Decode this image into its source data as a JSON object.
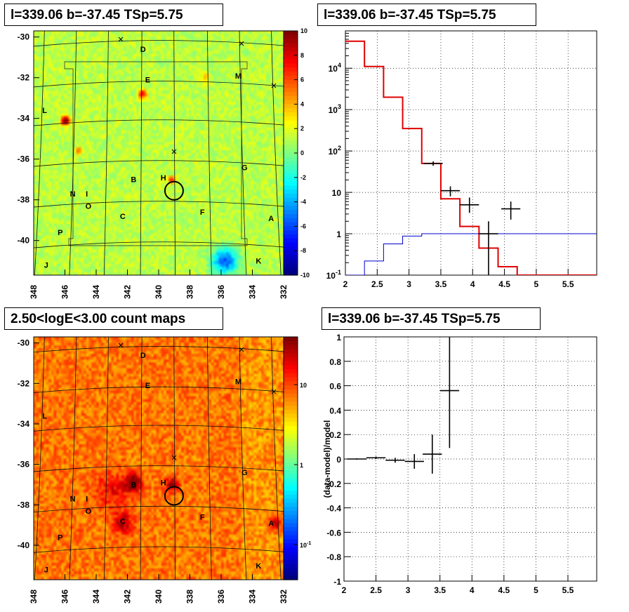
{
  "panels": {
    "tl_title": "l=339.06 b=-37.45 TSp=5.75",
    "tr_title": "l=339.06 b=-37.45 TSp=5.75",
    "bl_title": "2.50<logE<3.00 count maps",
    "br_title": "l=339.06 b=-37.45 TSp=5.75"
  },
  "chart_data": [
    {
      "type": "heatmap",
      "id": "ts-map",
      "title": "l=339.06 b=-37.45 TSp=5.75",
      "xlim": [
        348,
        332
      ],
      "ylim": [
        -41.7,
        -29.7
      ],
      "xticks": [
        "348",
        "346",
        "344",
        "342",
        "340",
        "338",
        "336",
        "334",
        "332"
      ],
      "yticks": [
        "-30",
        "-32",
        "-34",
        "-36",
        "-38",
        "-40"
      ],
      "colorbar": {
        "range": [
          -10,
          10
        ],
        "ticks": [
          "10",
          "8",
          "6",
          "4",
          "2",
          "0",
          "-2",
          "-4",
          "-6",
          "-8",
          "-10"
        ]
      },
      "sources": [
        {
          "label": "D",
          "l": 341.0,
          "b": -30.6
        },
        {
          "label": "E",
          "l": 340.7,
          "b": -32.1
        },
        {
          "label": "M",
          "l": 334.9,
          "b": -31.9
        },
        {
          "label": "L",
          "l": 347.3,
          "b": -33.6
        },
        {
          "label": "G",
          "l": 334.5,
          "b": -36.4
        },
        {
          "label": "B",
          "l": 341.6,
          "b": -37.0
        },
        {
          "label": "H",
          "l": 339.7,
          "b": -36.9
        },
        {
          "label": "N",
          "l": 345.5,
          "b": -37.7
        },
        {
          "label": "I",
          "l": 344.6,
          "b": -37.7
        },
        {
          "label": "O",
          "l": 344.5,
          "b": -38.3
        },
        {
          "label": "C",
          "l": 342.3,
          "b": -38.8
        },
        {
          "label": "F",
          "l": 337.2,
          "b": -38.6
        },
        {
          "label": "A",
          "l": 332.8,
          "b": -38.9
        },
        {
          "label": "P",
          "l": 346.3,
          "b": -39.6
        },
        {
          "label": "J",
          "l": 347.2,
          "b": -41.2
        },
        {
          "label": "K",
          "l": 333.6,
          "b": -41.0
        }
      ],
      "target": {
        "l": 339.06,
        "b": -37.45
      }
    },
    {
      "type": "line",
      "id": "spectrum",
      "title": "l=339.06 b=-37.45 TSp=5.75",
      "xlim": [
        2,
        5.95
      ],
      "ylim": [
        0.1,
        80000
      ],
      "yscale": "log",
      "xticks": [
        "2",
        "2.5",
        "3",
        "3.5",
        "4",
        "4.5",
        "5",
        "5.5"
      ],
      "yticks": [
        "10^{-1}",
        "1",
        "10",
        "10^{2}",
        "10^{3}",
        "10^{4}"
      ],
      "bin_edges": [
        2.0,
        2.3,
        2.6,
        2.9,
        3.2,
        3.5,
        3.8,
        4.1,
        4.4,
        4.7,
        5.0,
        5.3,
        5.6,
        5.95
      ],
      "series": [
        {
          "color": "#e00000",
          "values": [
            45000,
            11000,
            2000,
            350,
            50,
            7,
            1.5,
            0.45,
            0.16,
            0.1,
            0.1,
            0.1,
            0.1
          ]
        },
        {
          "color": "#0000cc",
          "values": [
            0.08,
            0.22,
            0.57,
            0.88,
            1.0,
            1.0,
            1.0,
            1.0,
            1.0,
            1.0,
            1.0,
            1.0,
            1.0
          ]
        }
      ],
      "data_points": [
        {
          "x": 3.38,
          "y": 50,
          "xerr": 0.15,
          "ylo": 44,
          "yhi": 56
        },
        {
          "x": 3.65,
          "y": 11,
          "xerr": 0.15,
          "ylo": 8,
          "yhi": 14
        },
        {
          "x": 3.95,
          "y": 5,
          "xerr": 0.15,
          "ylo": 3.2,
          "yhi": 7.5
        },
        {
          "x": 4.25,
          "y": 1,
          "xerr": 0.15,
          "ylo": 0.1,
          "yhi": 2
        },
        {
          "x": 4.6,
          "y": 4,
          "xerr": 0.15,
          "ylo": 2.2,
          "yhi": 6
        }
      ]
    },
    {
      "type": "heatmap",
      "id": "count-map",
      "title": "2.50<logE<3.00 count maps",
      "xlim": [
        348,
        332
      ],
      "ylim": [
        -41.7,
        -29.7
      ],
      "xticks": [
        "348",
        "346",
        "344",
        "342",
        "340",
        "338",
        "336",
        "334",
        "332"
      ],
      "yticks": [
        "-30",
        "-32",
        "-34",
        "-36",
        "-38",
        "-40"
      ],
      "colorbar": {
        "scale": "log",
        "ticks": [
          "10",
          "1",
          "10^{-1}"
        ]
      },
      "sources_same_as": "ts-map"
    },
    {
      "type": "scatter",
      "id": "residuals",
      "title": "l=339.06 b=-37.45 TSp=5.75",
      "ylabel": "(data-model)/model",
      "xlim": [
        2,
        5.95
      ],
      "ylim": [
        -1,
        1
      ],
      "xticks": [
        "2",
        "2.5",
        "3",
        "3.5",
        "4",
        "4.5",
        "5",
        "5.5"
      ],
      "yticks": [
        "1",
        "0.8",
        "0.6",
        "0.4",
        "0.2",
        "0",
        "-0.2",
        "-0.4",
        "-0.6",
        "-0.8",
        "-1"
      ],
      "points": [
        {
          "x": 2.2,
          "y": 0.0,
          "xerr": 0.15,
          "yerr": 0.005
        },
        {
          "x": 2.5,
          "y": 0.01,
          "xerr": 0.15,
          "yerr": 0.01
        },
        {
          "x": 2.8,
          "y": -0.01,
          "xerr": 0.15,
          "yerr": 0.02
        },
        {
          "x": 3.1,
          "y": -0.02,
          "xerr": 0.15,
          "yerr": 0.06
        },
        {
          "x": 3.38,
          "y": 0.04,
          "xerr": 0.15,
          "yerr": 0.16
        },
        {
          "x": 3.65,
          "y": 0.56,
          "xerr": 0.15,
          "yerr": 0.47
        }
      ]
    }
  ]
}
